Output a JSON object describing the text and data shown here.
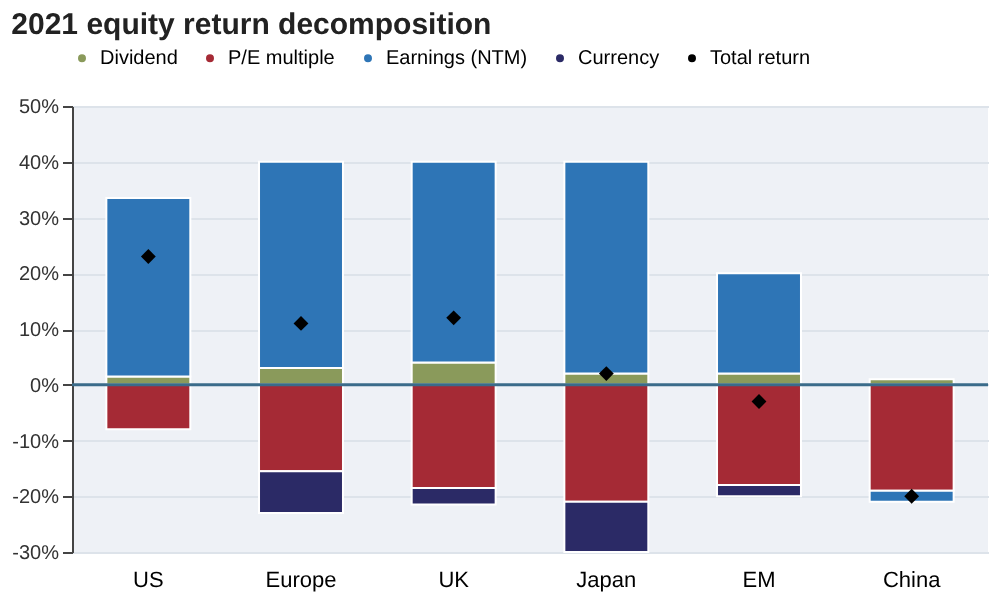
{
  "chart_data": {
    "type": "bar",
    "title": "2021 equity return decomposition",
    "categories": [
      "US",
      "Europe",
      "UK",
      "Japan",
      "EM",
      "China"
    ],
    "stacked": true,
    "series": [
      {
        "name": "Dividend",
        "color": "#8a9a5b",
        "values": [
          1.5,
          3,
          4,
          2,
          2,
          1
        ]
      },
      {
        "name": "P/E multiple",
        "color": "#a52a35",
        "values": [
          -8,
          -15.5,
          -18.5,
          -21,
          -18,
          -19
        ]
      },
      {
        "name": "Earnings (NTM)",
        "color": "#2e75b6",
        "values": [
          32,
          37,
          36,
          38,
          18,
          -2
        ]
      },
      {
        "name": "Currency",
        "color": "#2b2a66",
        "values": [
          null,
          -7.5,
          -3,
          -9,
          -2,
          null
        ]
      },
      {
        "name": "Total return",
        "type": "scatter",
        "color": "#000000",
        "marker": "diamond",
        "x": [
          "US",
          "Europe",
          "UK",
          "Japan",
          "EM",
          "China"
        ],
        "values": [
          23,
          11,
          12,
          2,
          -3,
          -20
        ]
      }
    ],
    "ylim": [
      -30,
      50
    ],
    "yticks": [
      {
        "value": -30,
        "label": "-30%"
      },
      {
        "value": -20,
        "label": "-20%"
      },
      {
        "value": -10,
        "label": "-10%"
      },
      {
        "value": 0,
        "label": "0%"
      },
      {
        "value": 10,
        "label": "10%"
      },
      {
        "value": 20,
        "label": "20%"
      },
      {
        "value": 30,
        "label": "30%"
      },
      {
        "value": 40,
        "label": "40%"
      },
      {
        "value": 50,
        "label": "50%"
      }
    ],
    "ref_lines": [
      {
        "axis": "y",
        "value": 0,
        "color": "#3a6b8a"
      }
    ],
    "grid": "y",
    "legend": "top"
  }
}
